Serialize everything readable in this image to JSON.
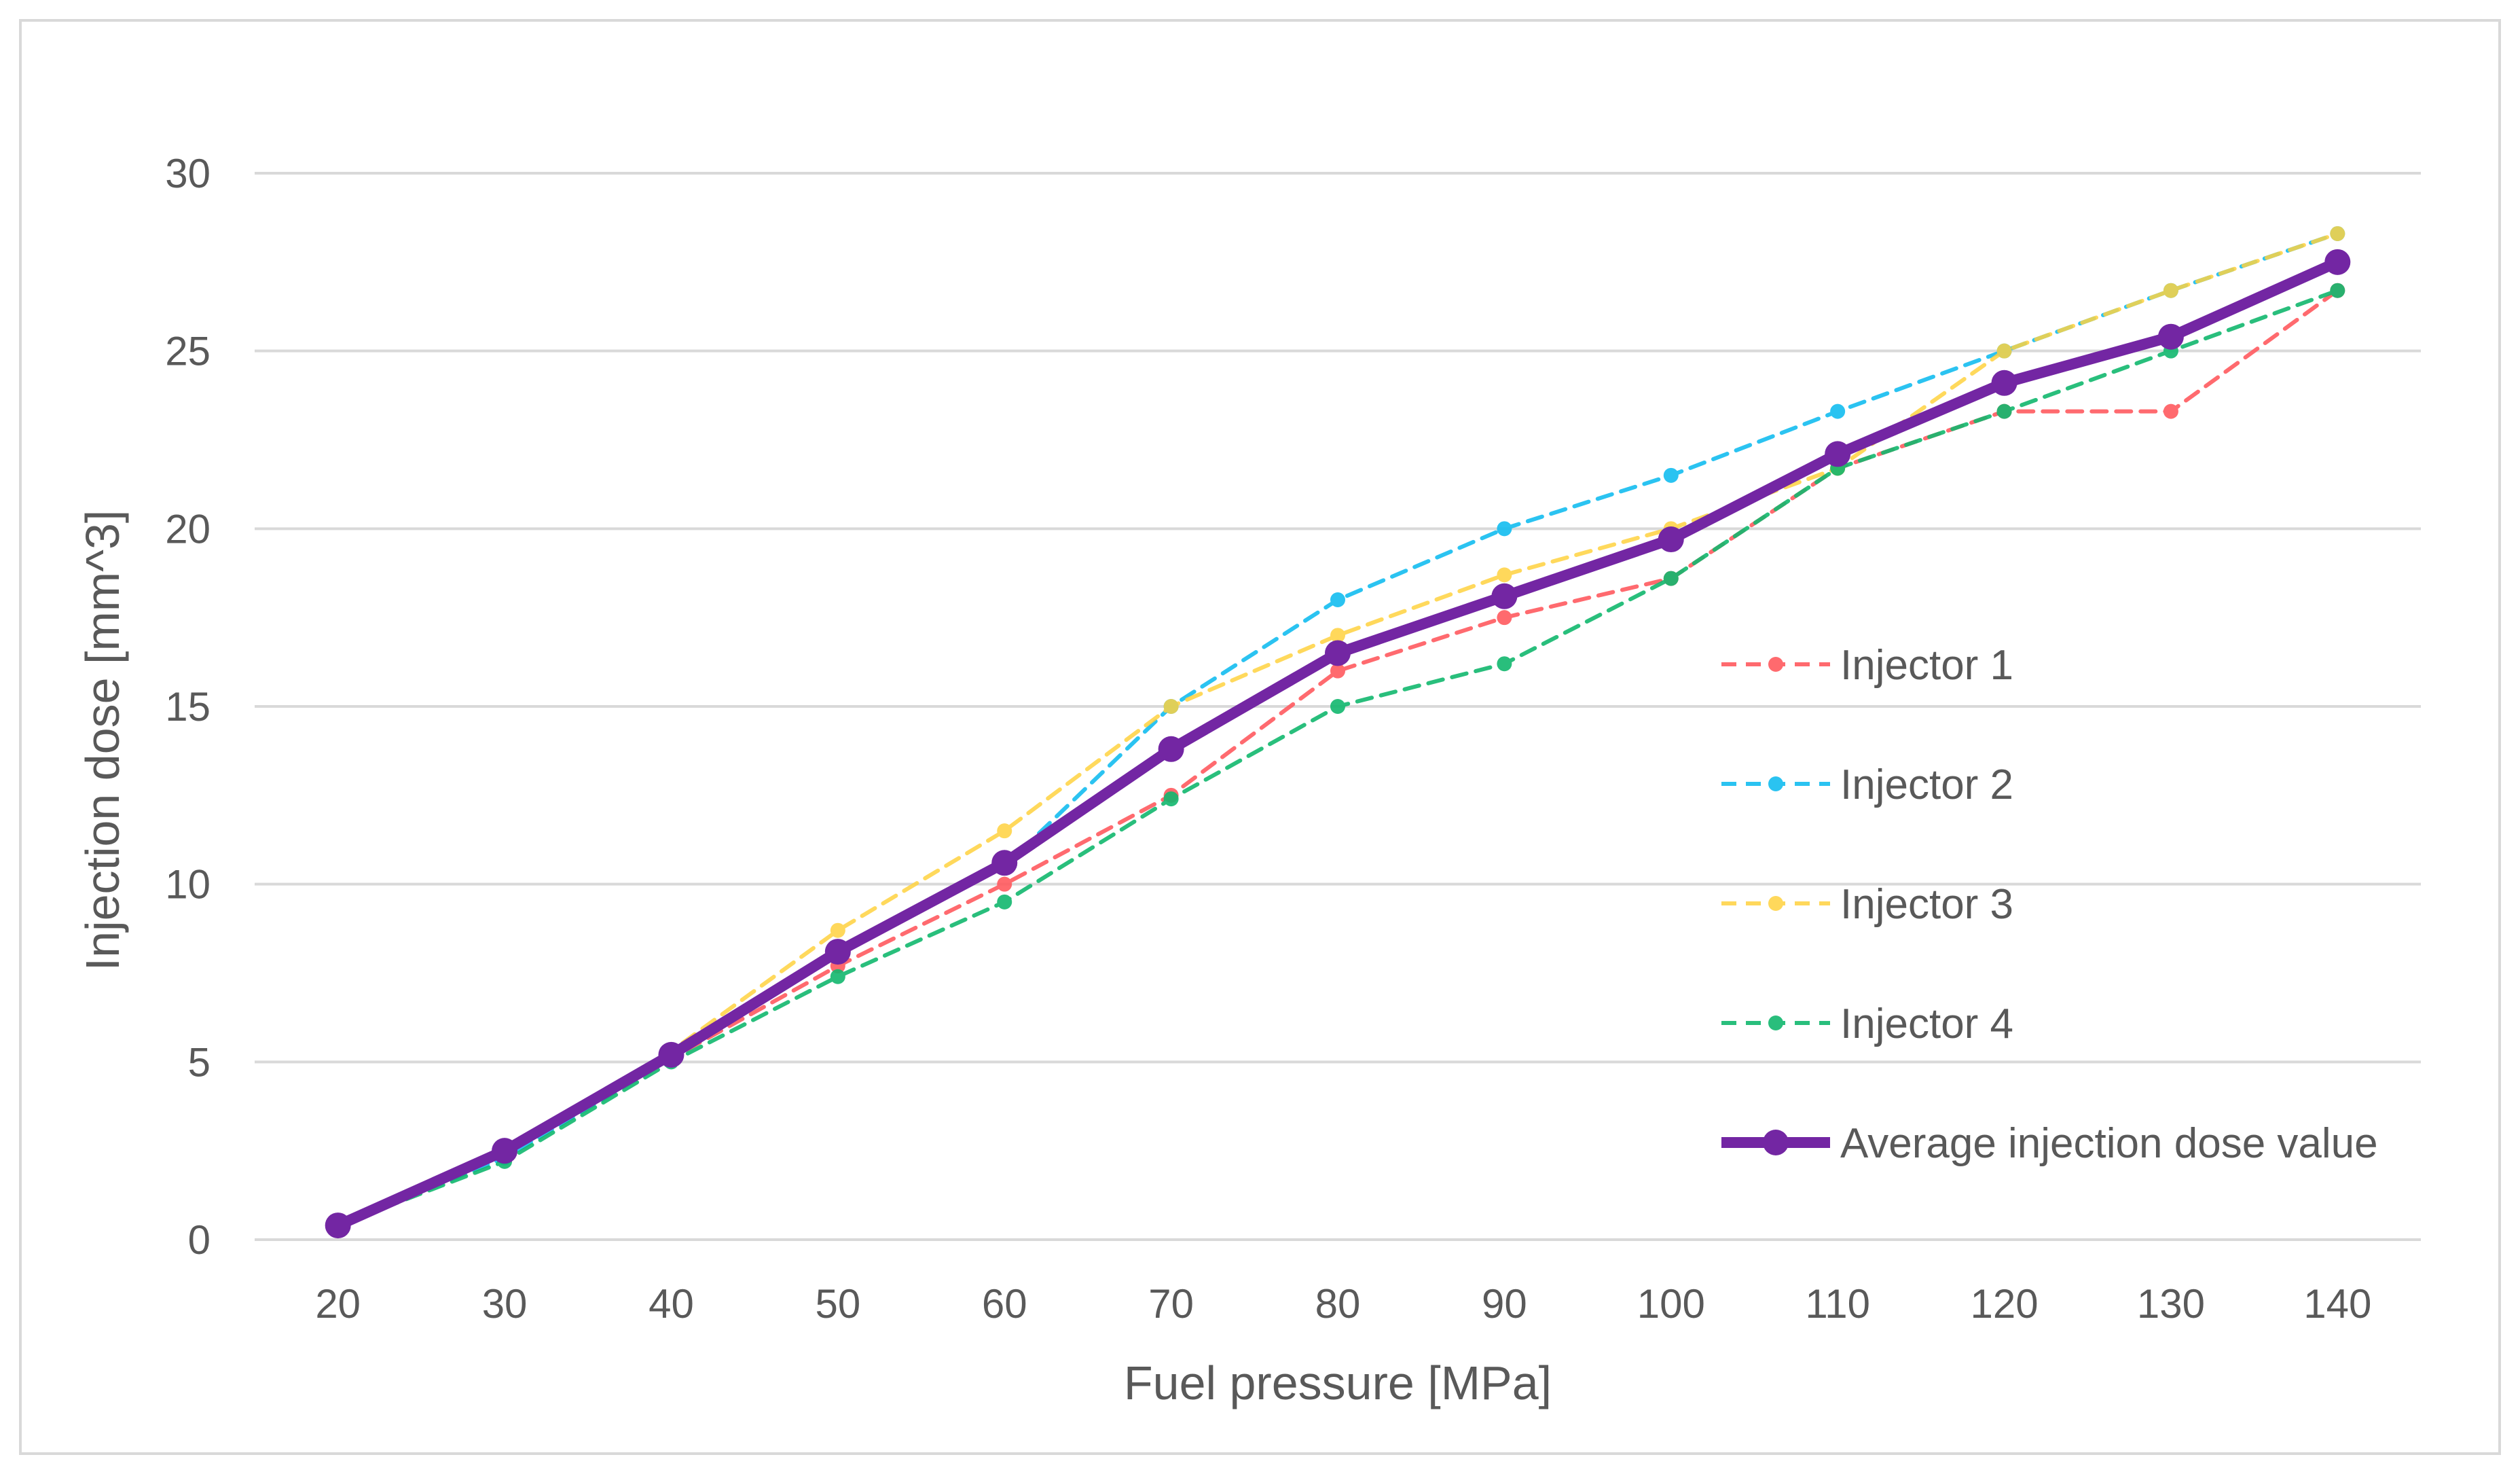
{
  "chart_data": {
    "type": "line",
    "title": "",
    "xlabel": "Fuel pressure [MPa]",
    "ylabel": "Injection dose [mm^3]",
    "categories": [
      "20",
      "30",
      "40",
      "50",
      "60",
      "70",
      "80",
      "90",
      "100",
      "110",
      "120",
      "130",
      "140"
    ],
    "ylim": [
      0,
      30
    ],
    "yticks": [
      "0",
      "5",
      "10",
      "15",
      "20",
      "25",
      "30"
    ],
    "grid": true,
    "legend_position": "right",
    "series": [
      {
        "name": "Injector 1",
        "color": "#ff5a5f",
        "style": "dashed",
        "opacity": 0.9,
        "values": [
          0.4,
          2.4,
          5.1,
          7.7,
          10.0,
          12.5,
          16.0,
          17.5,
          18.6,
          21.7,
          23.3,
          23.3,
          26.7
        ]
      },
      {
        "name": "Injector 2",
        "color": "#14bdf0",
        "style": "dashed",
        "opacity": 0.9,
        "values": [
          0.4,
          2.3,
          5.1,
          8.1,
          10.5,
          15.0,
          18.0,
          20.0,
          21.5,
          23.3,
          25.0,
          26.7,
          28.3
        ]
      },
      {
        "name": "Injector 3",
        "color": "#ffd23f",
        "style": "dashed",
        "opacity": 0.85,
        "values": [
          0.4,
          2.4,
          5.3,
          8.7,
          11.5,
          15.0,
          17.0,
          18.7,
          20.0,
          21.7,
          25.0,
          26.7,
          28.3
        ]
      },
      {
        "name": "Injector 4",
        "color": "#12b86e",
        "style": "dashed",
        "opacity": 0.9,
        "values": [
          0.4,
          2.2,
          5.0,
          7.4,
          9.5,
          12.4,
          15.0,
          16.2,
          18.6,
          21.7,
          23.3,
          25.0,
          26.7
        ]
      },
      {
        "name": "Average injection dose value",
        "color": "#7326a3",
        "style": "solid",
        "opacity": 1,
        "values": [
          0.4,
          2.5,
          5.2,
          8.1,
          10.6,
          13.8,
          16.5,
          18.1,
          19.7,
          22.1,
          24.1,
          25.4,
          27.5
        ]
      }
    ]
  }
}
